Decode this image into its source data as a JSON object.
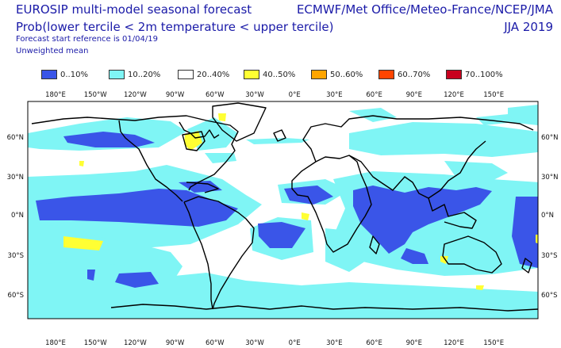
{
  "header": {
    "title": "EUROSIP multi-model seasonal forecast",
    "subtitle": "Prob(lower tercile < 2m temperature < upper tercile)",
    "forecast_ref": "Forecast start reference is 01/04/19",
    "weighting": "Unweighted mean",
    "sources": "ECMWF/Met Office/Meteo-France/NCEP/JMA",
    "period": "JJA 2019"
  },
  "legend": [
    {
      "label": "0..10%",
      "color": "#3a55e8"
    },
    {
      "label": "10..20%",
      "color": "#7ff5f5"
    },
    {
      "label": "20..40%",
      "color": "#ffffff"
    },
    {
      "label": "40..50%",
      "color": "#ffff33"
    },
    {
      "label": "50..60%",
      "color": "#ffa500"
    },
    {
      "label": "60..70%",
      "color": "#ff4500"
    },
    {
      "label": "70..100%",
      "color": "#c8001e"
    }
  ],
  "map": {
    "lon_ticks": [
      "180°E",
      "150°W",
      "120°W",
      "90°W",
      "60°W",
      "30°W",
      "0°E",
      "30°E",
      "60°E",
      "90°E",
      "120°E",
      "150°E"
    ],
    "lat_ticks": [
      "60°N",
      "30°N",
      "0°N",
      "30°S",
      "60°S"
    ]
  }
}
